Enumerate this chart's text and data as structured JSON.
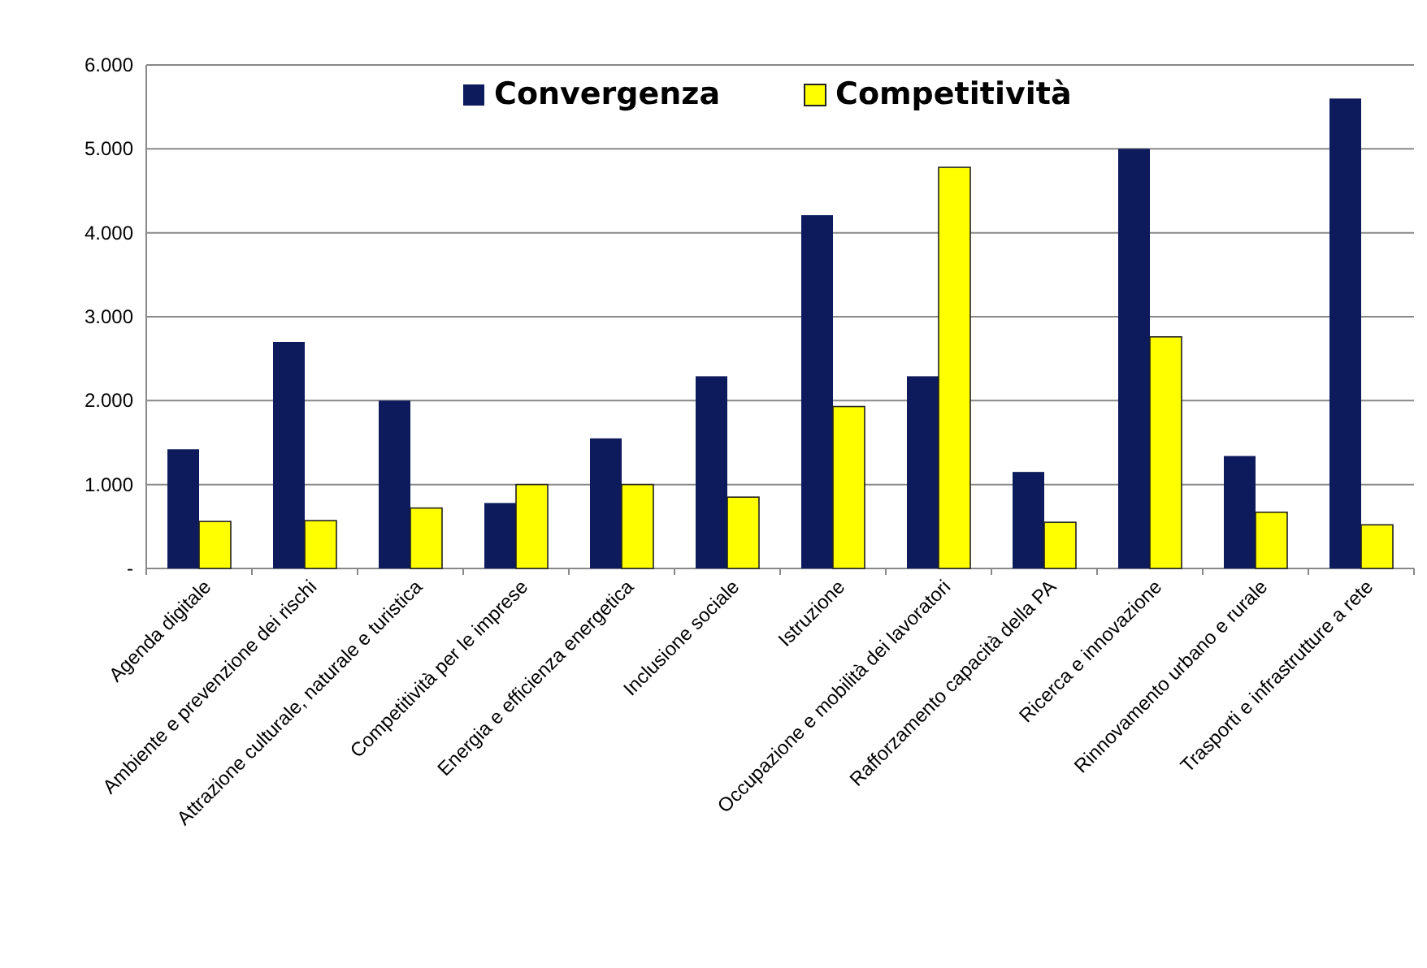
{
  "chart_data": {
    "type": "bar",
    "categories": [
      "Agenda digitale",
      "Ambiente e prevenzione dei rischi",
      "Attrazione culturale, naturale e turistica",
      "Competitività per le imprese",
      "Energia e efficienza energetica",
      "Inclusione sociale",
      "Istruzione",
      "Occupazione e mobilità dei lavoratori",
      "Rafforzamento capacità della PA",
      "Ricerca e innovazione",
      "Rinnovamento urbano  e rurale",
      "Trasporti e infrastrutture a rete"
    ],
    "series": [
      {
        "name": "Convergenza",
        "color": "#0d1a5c",
        "values": [
          1420,
          2700,
          2000,
          780,
          1550,
          2290,
          4210,
          2290,
          1150,
          5000,
          1340,
          5600
        ]
      },
      {
        "name": "Competitività",
        "color": "#ffff00",
        "values": [
          560,
          570,
          720,
          1000,
          1000,
          850,
          1930,
          4780,
          550,
          2760,
          670,
          520
        ]
      }
    ],
    "ylim": [
      0,
      6000
    ],
    "yticks": [
      {
        "value": 0,
        "label": "-"
      },
      {
        "value": 1000,
        "label": "1.000"
      },
      {
        "value": 2000,
        "label": "2.000"
      },
      {
        "value": 3000,
        "label": "3.000"
      },
      {
        "value": 4000,
        "label": "4.000"
      },
      {
        "value": 5000,
        "label": "5.000"
      },
      {
        "value": 6000,
        "label": "6.000"
      }
    ],
    "grid": "y",
    "legend": "top"
  }
}
